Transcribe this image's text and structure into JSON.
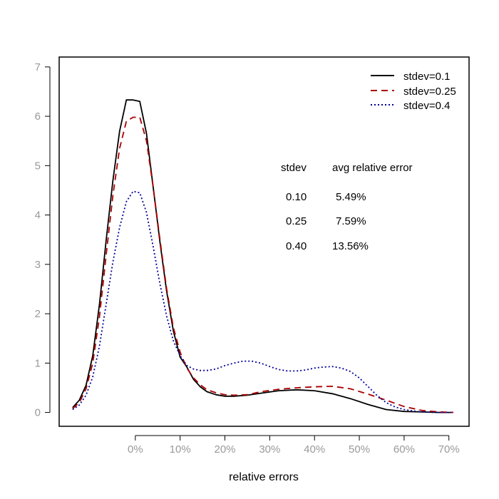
{
  "chart_data": {
    "type": "line",
    "title": "",
    "xlabel": "relative errors",
    "ylabel": "",
    "xlim": [
      -0.17,
      0.745
    ],
    "ylim": [
      -0.28,
      7.2
    ],
    "x_ticks": [
      0,
      0.1,
      0.2,
      0.3,
      0.4,
      0.5,
      0.6,
      0.7
    ],
    "x_tick_labels": [
      "0%",
      "10%",
      "20%",
      "30%",
      "40%",
      "50%",
      "60%",
      "70%"
    ],
    "y_ticks": [
      0,
      1,
      2,
      3,
      4,
      5,
      6,
      7
    ],
    "y_tick_labels": [
      "0",
      "1",
      "2",
      "3",
      "4",
      "5",
      "6",
      "7"
    ],
    "legend_position": "top-right",
    "series": [
      {
        "name": "stdev=0.1",
        "color": "#000000",
        "dash": "solid",
        "x": [
          -0.14,
          -0.125,
          -0.11,
          -0.095,
          -0.08,
          -0.065,
          -0.05,
          -0.035,
          -0.02,
          -0.005,
          0.01,
          0.025,
          0.04,
          0.055,
          0.07,
          0.085,
          0.1,
          0.115,
          0.13,
          0.145,
          0.16,
          0.18,
          0.2,
          0.22,
          0.25,
          0.28,
          0.32,
          0.36,
          0.4,
          0.44,
          0.48,
          0.52,
          0.56,
          0.6,
          0.64,
          0.68,
          0.71
        ],
        "values": [
          0.1,
          0.25,
          0.55,
          1.15,
          2.2,
          3.5,
          4.7,
          5.7,
          6.33,
          6.33,
          6.3,
          5.65,
          4.55,
          3.45,
          2.45,
          1.65,
          1.12,
          0.92,
          0.67,
          0.52,
          0.42,
          0.36,
          0.33,
          0.33,
          0.35,
          0.39,
          0.44,
          0.46,
          0.44,
          0.38,
          0.28,
          0.16,
          0.06,
          0.02,
          0.01,
          0.0,
          0.0
        ]
      },
      {
        "name": "stdev=0.25",
        "color": "#aa0000",
        "dash": "dashed",
        "x": [
          -0.14,
          -0.125,
          -0.11,
          -0.095,
          -0.08,
          -0.065,
          -0.05,
          -0.035,
          -0.02,
          -0.005,
          0.01,
          0.025,
          0.04,
          0.055,
          0.07,
          0.085,
          0.1,
          0.115,
          0.13,
          0.145,
          0.16,
          0.18,
          0.2,
          0.22,
          0.25,
          0.28,
          0.32,
          0.36,
          0.4,
          0.44,
          0.48,
          0.52,
          0.56,
          0.6,
          0.64,
          0.68,
          0.71
        ],
        "values": [
          0.08,
          0.2,
          0.48,
          1.0,
          1.95,
          3.2,
          4.4,
          5.35,
          5.9,
          5.98,
          5.98,
          5.5,
          4.55,
          3.5,
          2.5,
          1.72,
          1.22,
          0.9,
          0.7,
          0.56,
          0.46,
          0.4,
          0.36,
          0.35,
          0.36,
          0.42,
          0.47,
          0.5,
          0.52,
          0.53,
          0.48,
          0.37,
          0.25,
          0.12,
          0.04,
          0.01,
          0.0
        ]
      },
      {
        "name": "stdev=0.4",
        "color": "#000099",
        "dash": "dotted",
        "x": [
          -0.14,
          -0.125,
          -0.11,
          -0.095,
          -0.08,
          -0.065,
          -0.05,
          -0.035,
          -0.02,
          -0.005,
          0.01,
          0.025,
          0.04,
          0.055,
          0.07,
          0.085,
          0.1,
          0.115,
          0.13,
          0.145,
          0.16,
          0.18,
          0.2,
          0.22,
          0.24,
          0.26,
          0.28,
          0.3,
          0.32,
          0.34,
          0.36,
          0.38,
          0.4,
          0.42,
          0.44,
          0.46,
          0.48,
          0.5,
          0.52,
          0.54,
          0.56,
          0.58,
          0.6,
          0.62,
          0.64,
          0.68,
          0.71
        ],
        "values": [
          0.06,
          0.15,
          0.35,
          0.72,
          1.35,
          2.2,
          3.05,
          3.75,
          4.27,
          4.48,
          4.45,
          4.05,
          3.35,
          2.6,
          1.95,
          1.45,
          1.15,
          0.95,
          0.88,
          0.85,
          0.85,
          0.88,
          0.95,
          1.0,
          1.04,
          1.04,
          1.0,
          0.93,
          0.87,
          0.84,
          0.84,
          0.86,
          0.9,
          0.92,
          0.93,
          0.9,
          0.83,
          0.7,
          0.52,
          0.34,
          0.2,
          0.11,
          0.06,
          0.03,
          0.01,
          0.0,
          0.0
        ]
      }
    ],
    "annotation_table": {
      "headers": [
        "stdev",
        "avg relative error"
      ],
      "rows": [
        [
          "0.10",
          "5.49%"
        ],
        [
          "0.25",
          "7.59%"
        ],
        [
          "0.40",
          "13.56%"
        ]
      ]
    }
  }
}
